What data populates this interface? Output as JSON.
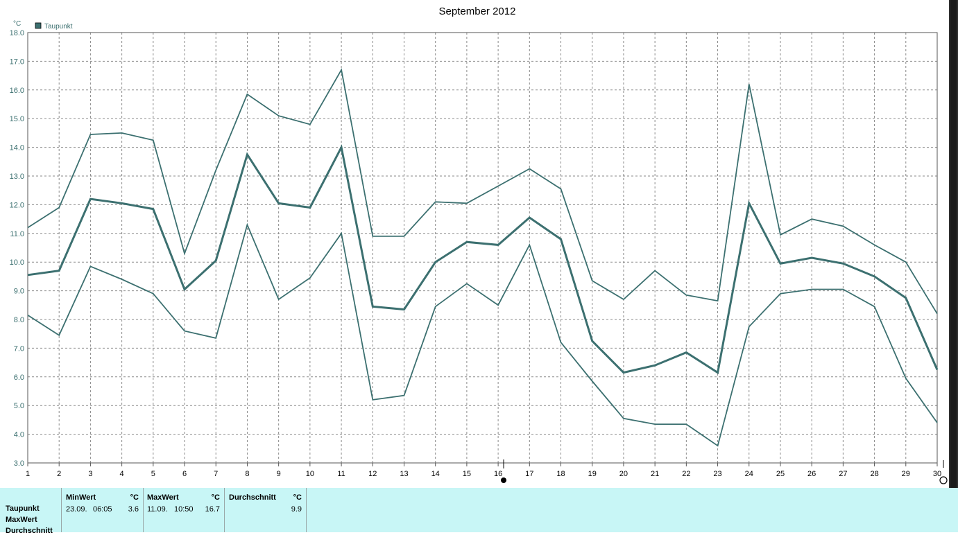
{
  "chart_data": {
    "type": "line",
    "title": "September 2012",
    "ylabel": "°C",
    "legend": {
      "label": "Taupunkt",
      "color": "#3c7070",
      "placement": "top-left"
    },
    "ylim": [
      3.0,
      18.0
    ],
    "yticks": [
      "3.0",
      "4.0",
      "5.0",
      "6.0",
      "7.0",
      "8.0",
      "9.0",
      "10.0",
      "11.0",
      "12.0",
      "13.0",
      "14.0",
      "15.0",
      "16.0",
      "17.0",
      "18.0"
    ],
    "x": [
      1,
      2,
      3,
      4,
      5,
      6,
      7,
      8,
      9,
      10,
      11,
      12,
      13,
      14,
      15,
      16,
      17,
      18,
      19,
      20,
      21,
      22,
      23,
      24,
      25,
      26,
      27,
      28,
      29,
      30
    ],
    "grid": true,
    "series": [
      {
        "role": "max",
        "values": [
          11.2,
          11.9,
          14.45,
          14.5,
          14.25,
          10.3,
          13.2,
          15.85,
          15.1,
          14.8,
          16.7,
          10.9,
          10.9,
          12.1,
          12.05,
          12.65,
          13.25,
          12.55,
          9.35,
          8.7,
          9.7,
          8.85,
          8.65,
          16.2,
          10.95,
          11.5,
          11.25,
          10.6,
          10.0,
          8.2
        ]
      },
      {
        "role": "mean",
        "values": [
          9.55,
          9.7,
          12.2,
          12.05,
          11.85,
          9.05,
          10.05,
          13.75,
          12.05,
          11.9,
          14.0,
          8.45,
          8.35,
          10.0,
          10.7,
          10.6,
          11.55,
          10.8,
          7.25,
          6.15,
          6.4,
          6.85,
          6.15,
          12.05,
          9.95,
          10.15,
          9.95,
          9.5,
          8.75,
          6.25
        ]
      },
      {
        "role": "min",
        "values": [
          8.15,
          7.45,
          9.85,
          9.4,
          8.9,
          7.6,
          7.35,
          11.3,
          8.7,
          9.45,
          11.0,
          5.2,
          5.35,
          8.45,
          9.25,
          8.5,
          10.6,
          7.2,
          5.85,
          4.55,
          4.35,
          4.35,
          3.6,
          7.75,
          8.9,
          9.05,
          9.05,
          8.45,
          5.95,
          4.4
        ]
      }
    ]
  },
  "stats": {
    "row_labels": [
      "Taupunkt",
      "MaxWert",
      "Durchschnitt"
    ],
    "min": {
      "header": "MinWert",
      "unit": "°C",
      "date": "23.09.",
      "time": "06:05",
      "value": "3.6"
    },
    "max": {
      "header": "MaxWert",
      "unit": "°C",
      "date": "11.09.",
      "time": "10:50",
      "value": "16.7"
    },
    "avg": {
      "header": "Durchschnitt",
      "unit": "°C",
      "value": "9.9"
    }
  }
}
